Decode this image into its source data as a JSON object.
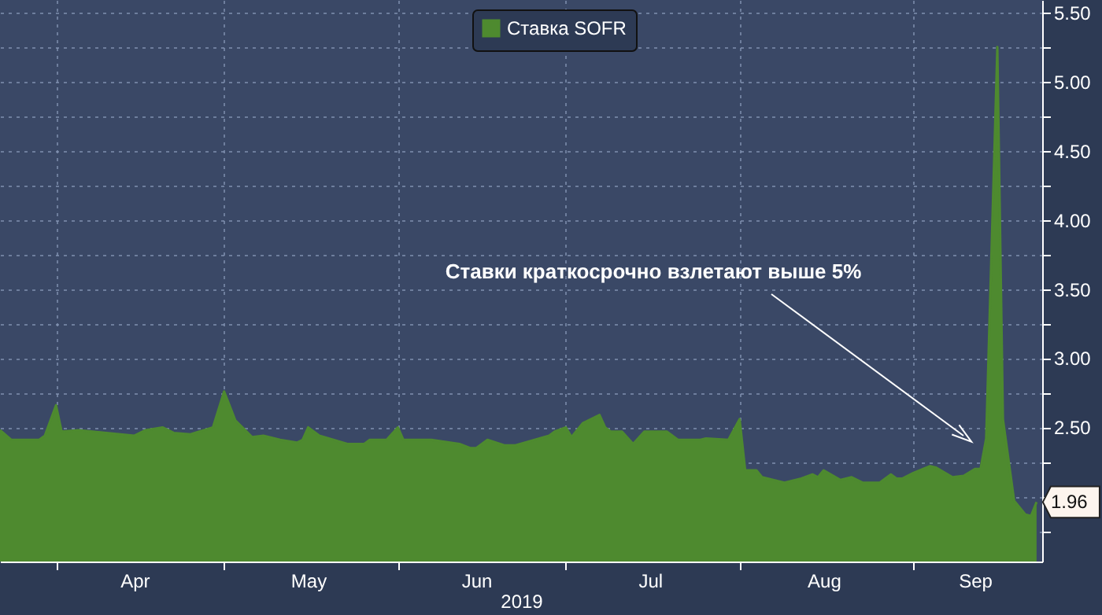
{
  "chart_data": {
    "type": "area",
    "xlabel": "2019",
    "x": [
      "2019-03-22",
      "2019-03-24",
      "2019-03-29",
      "2019-03-30",
      "2019-04-01",
      "2019-04-02",
      "2019-04-05",
      "2019-04-10",
      "2019-04-15",
      "2019-04-17",
      "2019-04-20",
      "2019-04-22",
      "2019-04-25",
      "2019-04-29",
      "2019-05-01",
      "2019-05-03",
      "2019-05-04",
      "2019-05-06",
      "2019-05-08",
      "2019-05-11",
      "2019-05-14",
      "2019-05-15",
      "2019-05-16",
      "2019-05-18",
      "2019-05-23",
      "2019-05-26",
      "2019-05-27",
      "2019-05-30",
      "2019-06-01",
      "2019-06-02",
      "2019-06-07",
      "2019-06-12",
      "2019-06-14",
      "2019-06-15",
      "2019-06-17",
      "2019-06-20",
      "2019-06-22",
      "2019-06-28",
      "2019-06-29",
      "2019-07-01",
      "2019-07-02",
      "2019-07-04",
      "2019-07-07",
      "2019-07-08",
      "2019-07-09",
      "2019-07-11",
      "2019-07-13",
      "2019-07-15",
      "2019-07-19",
      "2019-07-21",
      "2019-07-25",
      "2019-07-26",
      "2019-07-30",
      "2019-08-01",
      "2019-08-02",
      "2019-08-04",
      "2019-08-05",
      "2019-08-09",
      "2019-08-12",
      "2019-08-14",
      "2019-08-15",
      "2019-08-16",
      "2019-08-19",
      "2019-08-21",
      "2019-08-23",
      "2019-08-26",
      "2019-08-28",
      "2019-08-29",
      "2019-08-30",
      "2019-09-01",
      "2019-09-04",
      "2019-09-05",
      "2019-09-08",
      "2019-09-10",
      "2019-09-12",
      "2019-09-13",
      "2019-09-14",
      "2019-09-16",
      "2019-09-17",
      "2019-09-19",
      "2019-09-21",
      "2019-09-22",
      "2019-09-23"
    ],
    "series": [
      {
        "name": "Ставка SOFR",
        "color": "#4e8a2f",
        "values": [
          2.48,
          2.41,
          2.41,
          2.44,
          2.66,
          2.47,
          2.48,
          2.46,
          2.44,
          2.48,
          2.5,
          2.46,
          2.45,
          2.5,
          2.76,
          2.55,
          2.51,
          2.43,
          2.44,
          2.41,
          2.39,
          2.41,
          2.5,
          2.44,
          2.38,
          2.38,
          2.41,
          2.41,
          2.5,
          2.41,
          2.41,
          2.38,
          2.35,
          2.35,
          2.41,
          2.37,
          2.37,
          2.44,
          2.47,
          2.5,
          2.43,
          2.53,
          2.59,
          2.5,
          2.47,
          2.47,
          2.38,
          2.47,
          2.47,
          2.41,
          2.41,
          2.42,
          2.41,
          2.56,
          2.19,
          2.19,
          2.14,
          2.1,
          2.13,
          2.16,
          2.14,
          2.19,
          2.12,
          2.14,
          2.1,
          2.1,
          2.16,
          2.13,
          2.13,
          2.17,
          2.22,
          2.21,
          2.14,
          2.15,
          2.2,
          2.2,
          2.42,
          5.25,
          2.56,
          1.97,
          1.87,
          1.86,
          1.96
        ],
        "value_labels": [
          null,
          null,
          null,
          null,
          null,
          null,
          null,
          null,
          null,
          null,
          null,
          null,
          null,
          null,
          null,
          null,
          null,
          null,
          null,
          null,
          null,
          null,
          null,
          null,
          null,
          null,
          null,
          null,
          null,
          null,
          null,
          null,
          null,
          null,
          null,
          null,
          null,
          null,
          null,
          null,
          null,
          null,
          null,
          null,
          null,
          null,
          null,
          null,
          null,
          null,
          null,
          null,
          null,
          null,
          null,
          null,
          null,
          null,
          null,
          null,
          null,
          null,
          null,
          null,
          null,
          null,
          null,
          null,
          null,
          null,
          null,
          null,
          null,
          null,
          null,
          null,
          null,
          null,
          null,
          null,
          null,
          null,
          "1.96"
        ]
      }
    ],
    "xlim": [
      "2019-03-22",
      "2019-09-24"
    ],
    "xticks": [
      {
        "value": "2019-04-01",
        "label": null
      },
      {
        "value": "2019-04-15",
        "label": "Apr"
      },
      {
        "value": "2019-05-01",
        "label": null
      },
      {
        "value": "2019-05-16",
        "label": "May"
      },
      {
        "value": "2019-06-01",
        "label": null
      },
      {
        "value": "2019-06-15",
        "label": "Jun"
      },
      {
        "value": "2019-07-01",
        "label": null
      },
      {
        "value": "2019-07-16",
        "label": "Jul"
      },
      {
        "value": "2019-08-01",
        "label": null
      },
      {
        "value": "2019-08-16",
        "label": "Aug"
      },
      {
        "value": "2019-09-01",
        "label": null
      },
      {
        "value": "2019-09-12",
        "label": "Sep"
      }
    ],
    "ylim": [
      1.53,
      5.59
    ],
    "yticks": [
      {
        "value": 1.75,
        "label": null
      },
      {
        "value": 2.0,
        "label": null
      },
      {
        "value": 2.25,
        "label": null
      },
      {
        "value": 2.5,
        "label": "2.50"
      },
      {
        "value": 2.75,
        "label": null
      },
      {
        "value": 3.0,
        "label": "3.00"
      },
      {
        "value": 3.25,
        "label": null
      },
      {
        "value": 3.5,
        "label": "3.50"
      },
      {
        "value": 3.75,
        "label": null
      },
      {
        "value": 4.0,
        "label": "4.00"
      },
      {
        "value": 4.25,
        "label": null
      },
      {
        "value": 4.5,
        "label": "4.50"
      },
      {
        "value": 4.75,
        "label": null
      },
      {
        "value": 5.0,
        "label": "5.00"
      },
      {
        "value": 5.25,
        "label": null
      },
      {
        "value": 5.5,
        "label": "5.50"
      }
    ],
    "grid": true,
    "legend": "top",
    "annotations": [
      "Ставки краткосрочно взлетают выше 5%"
    ]
  }
}
